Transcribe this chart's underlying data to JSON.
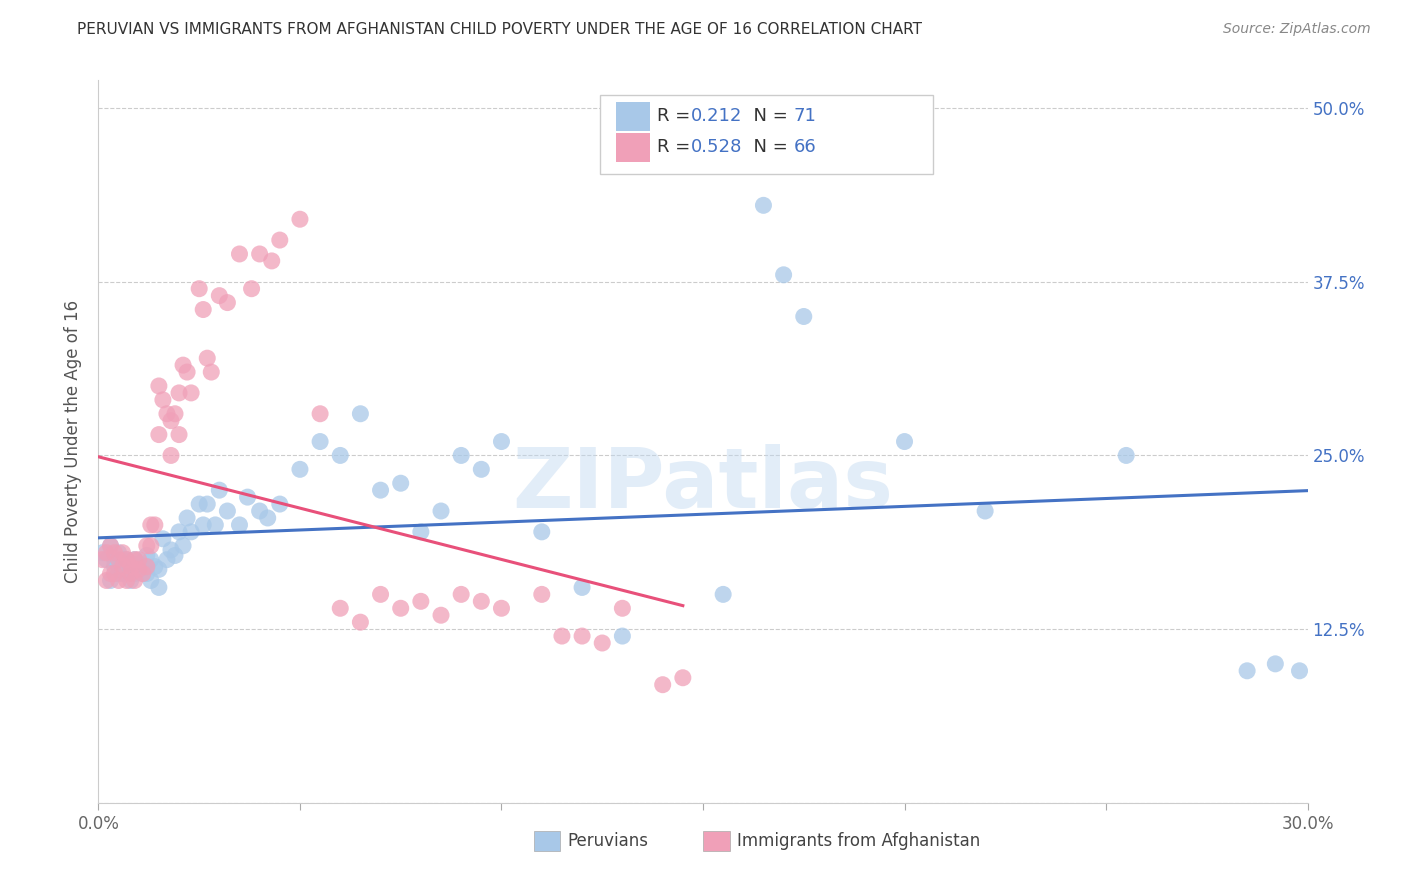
{
  "title": "PERUVIAN VS IMMIGRANTS FROM AFGHANISTAN CHILD POVERTY UNDER THE AGE OF 16 CORRELATION CHART",
  "source": "Source: ZipAtlas.com",
  "ylabel": "Child Poverty Under the Age of 16",
  "xlim": [
    0.0,
    0.3
  ],
  "ylim": [
    0.0,
    0.52
  ],
  "xtick_pos": [
    0.0,
    0.05,
    0.1,
    0.15,
    0.2,
    0.25,
    0.3
  ],
  "xtick_labels": [
    "0.0%",
    "",
    "",
    "",
    "",
    "",
    "30.0%"
  ],
  "ytick_pos": [
    0.0,
    0.125,
    0.25,
    0.375,
    0.5
  ],
  "ytick_labels": [
    "",
    "12.5%",
    "25.0%",
    "37.5%",
    "50.0%"
  ],
  "blue_R": 0.212,
  "blue_N": 71,
  "pink_R": 0.528,
  "pink_N": 66,
  "blue_color": "#a8c8e8",
  "pink_color": "#f0a0b8",
  "blue_line_color": "#4472c4",
  "pink_line_color": "#e8507a",
  "watermark": "ZIPatlas",
  "legend_label_blue": "Peruvians",
  "legend_label_pink": "Immigrants from Afghanistan",
  "blue_x": [
    0.001,
    0.002,
    0.003,
    0.003,
    0.004,
    0.004,
    0.005,
    0.005,
    0.005,
    0.006,
    0.006,
    0.007,
    0.007,
    0.008,
    0.008,
    0.009,
    0.009,
    0.01,
    0.01,
    0.011,
    0.011,
    0.012,
    0.012,
    0.013,
    0.013,
    0.014,
    0.015,
    0.015,
    0.016,
    0.017,
    0.018,
    0.019,
    0.02,
    0.021,
    0.022,
    0.023,
    0.025,
    0.026,
    0.027,
    0.029,
    0.03,
    0.032,
    0.035,
    0.037,
    0.04,
    0.042,
    0.045,
    0.05,
    0.055,
    0.06,
    0.065,
    0.07,
    0.075,
    0.08,
    0.085,
    0.09,
    0.095,
    0.1,
    0.11,
    0.12,
    0.13,
    0.155,
    0.165,
    0.17,
    0.175,
    0.2,
    0.22,
    0.255,
    0.285,
    0.292,
    0.298
  ],
  "blue_y": [
    0.18,
    0.175,
    0.185,
    0.16,
    0.17,
    0.175,
    0.165,
    0.18,
    0.17,
    0.165,
    0.175,
    0.17,
    0.175,
    0.16,
    0.168,
    0.165,
    0.175,
    0.168,
    0.172,
    0.165,
    0.17,
    0.178,
    0.165,
    0.175,
    0.16,
    0.17,
    0.155,
    0.168,
    0.19,
    0.175,
    0.182,
    0.178,
    0.195,
    0.185,
    0.205,
    0.195,
    0.215,
    0.2,
    0.215,
    0.2,
    0.225,
    0.21,
    0.2,
    0.22,
    0.21,
    0.205,
    0.215,
    0.24,
    0.26,
    0.25,
    0.28,
    0.225,
    0.23,
    0.195,
    0.21,
    0.25,
    0.24,
    0.26,
    0.195,
    0.155,
    0.12,
    0.15,
    0.43,
    0.38,
    0.35,
    0.26,
    0.21,
    0.25,
    0.095,
    0.1,
    0.095
  ],
  "pink_x": [
    0.001,
    0.002,
    0.002,
    0.003,
    0.003,
    0.004,
    0.004,
    0.005,
    0.005,
    0.006,
    0.006,
    0.007,
    0.007,
    0.008,
    0.008,
    0.009,
    0.009,
    0.01,
    0.01,
    0.011,
    0.012,
    0.012,
    0.013,
    0.013,
    0.014,
    0.015,
    0.015,
    0.016,
    0.017,
    0.018,
    0.018,
    0.019,
    0.02,
    0.02,
    0.021,
    0.022,
    0.023,
    0.025,
    0.026,
    0.027,
    0.028,
    0.03,
    0.032,
    0.035,
    0.038,
    0.04,
    0.043,
    0.045,
    0.05,
    0.055,
    0.06,
    0.065,
    0.07,
    0.075,
    0.08,
    0.085,
    0.09,
    0.095,
    0.1,
    0.11,
    0.115,
    0.12,
    0.125,
    0.13,
    0.14,
    0.145
  ],
  "pink_y": [
    0.175,
    0.18,
    0.16,
    0.185,
    0.165,
    0.18,
    0.165,
    0.175,
    0.16,
    0.18,
    0.17,
    0.175,
    0.16,
    0.17,
    0.165,
    0.175,
    0.16,
    0.168,
    0.175,
    0.165,
    0.185,
    0.17,
    0.2,
    0.185,
    0.2,
    0.3,
    0.265,
    0.29,
    0.28,
    0.275,
    0.25,
    0.28,
    0.295,
    0.265,
    0.315,
    0.31,
    0.295,
    0.37,
    0.355,
    0.32,
    0.31,
    0.365,
    0.36,
    0.395,
    0.37,
    0.395,
    0.39,
    0.405,
    0.42,
    0.28,
    0.14,
    0.13,
    0.15,
    0.14,
    0.145,
    0.135,
    0.15,
    0.145,
    0.14,
    0.15,
    0.12,
    0.12,
    0.115,
    0.14,
    0.085,
    0.09
  ]
}
